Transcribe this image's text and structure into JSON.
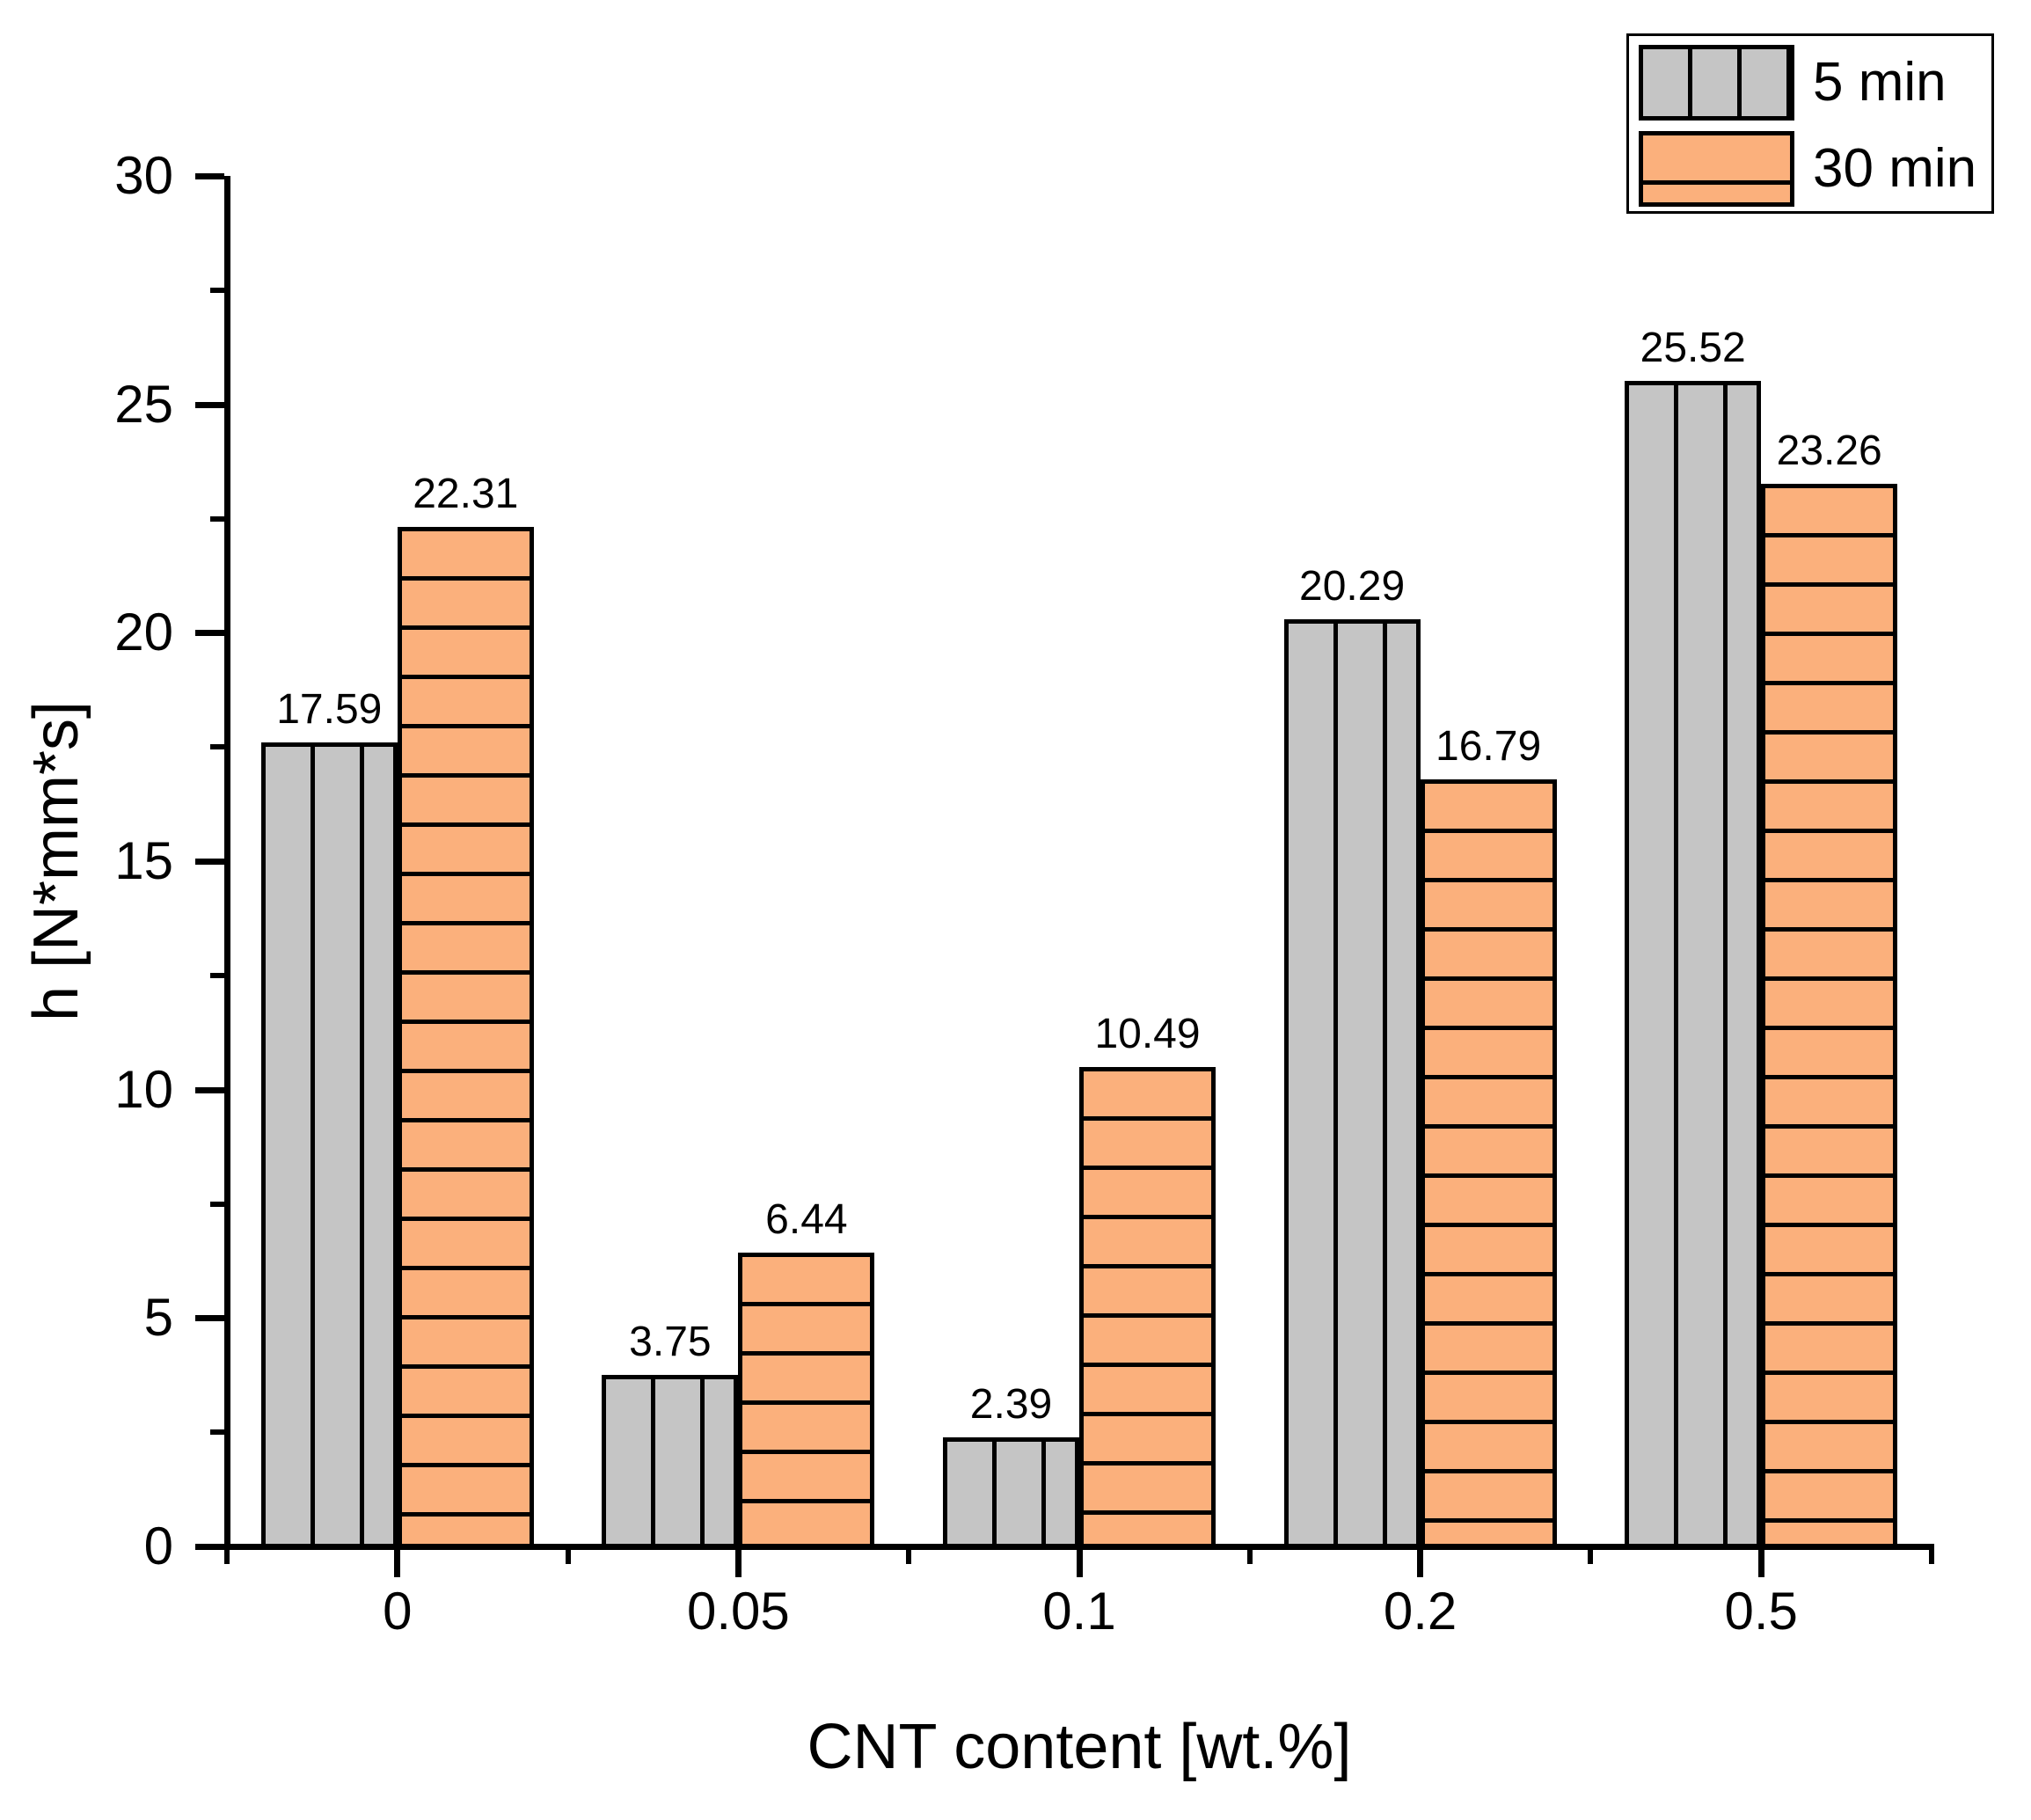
{
  "chart_data": {
    "type": "bar",
    "title": "",
    "xlabel": "CNT content [wt.%]",
    "ylabel": "h [N*mm*s]",
    "categories": [
      "0",
      "0.05",
      "0.1",
      "0.2",
      "0.5"
    ],
    "series": [
      {
        "name": "5 min",
        "values": [
          17.59,
          3.75,
          2.39,
          20.29,
          25.52
        ],
        "value_labels": [
          "17.59",
          "3.75",
          "2.39",
          "20.29",
          "25.52"
        ],
        "fill": "#c5c5c5",
        "hatch": "vertical",
        "outline": "#000000"
      },
      {
        "name": "30 min",
        "values": [
          22.31,
          6.44,
          10.49,
          16.79,
          23.26
        ],
        "value_labels": [
          "22.31",
          "6.44",
          "10.49",
          "16.79",
          "23.26"
        ],
        "fill": "#fbb07c",
        "hatch": "horizontal",
        "outline": "#000000"
      }
    ],
    "ylim": [
      0,
      30
    ],
    "ytick_major_step": 5,
    "ytick_minor_step": 2.5,
    "ytick_labels": [
      "0",
      "5",
      "10",
      "15",
      "20",
      "25",
      "30"
    ],
    "grid": false,
    "legend": {
      "position": "top-right",
      "entries": [
        "5 min",
        "30 min"
      ]
    }
  }
}
